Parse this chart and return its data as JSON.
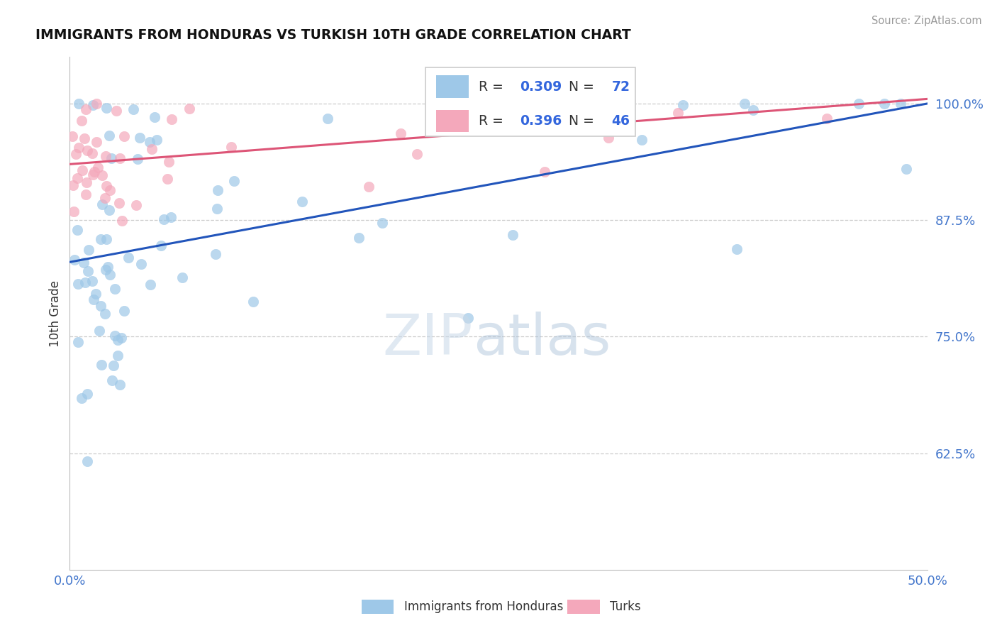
{
  "title": "IMMIGRANTS FROM HONDURAS VS TURKISH 10TH GRADE CORRELATION CHART",
  "source": "Source: ZipAtlas.com",
  "ylabel_label": "10th Grade",
  "xlim": [
    0.0,
    50.0
  ],
  "ylim": [
    50.0,
    105.0
  ],
  "yticks": [
    62.5,
    75.0,
    87.5,
    100.0
  ],
  "ytick_labels": [
    "62.5%",
    "75.0%",
    "87.5%",
    "100.0%"
  ],
  "xticks": [
    0.0,
    50.0
  ],
  "xtick_labels": [
    "0.0%",
    "50.0%"
  ],
  "blue_color": "#9ec8e8",
  "pink_color": "#f4a8bb",
  "blue_line_color": "#2255bb",
  "pink_line_color": "#dd5577",
  "blue_R": 0.309,
  "blue_N": 72,
  "pink_R": 0.396,
  "pink_N": 46,
  "legend_label_blue": "Immigrants from Honduras",
  "legend_label_pink": "Turks",
  "watermark_zip": "ZIP",
  "watermark_atlas": "atlas",
  "blue_trend_y0": 83.0,
  "blue_trend_y1": 100.0,
  "pink_trend_y0": 93.5,
  "pink_trend_y1": 100.5
}
